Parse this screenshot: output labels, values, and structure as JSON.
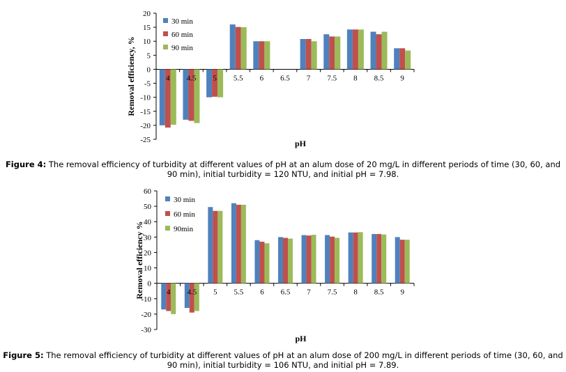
{
  "chart_data": [
    {
      "type": "bar",
      "figure_label": "Figure 4:",
      "caption": "The removal efficiency of turbidity at different values of pH at an alum dose of 20 mg/L in different periods of time (30, 60, and 90 min), initial turbidity = 120 NTU, and initial pH = 7.98.",
      "xlabel": "pH",
      "ylabel": "Removal efficiency, %",
      "ylim": [
        -25,
        20
      ],
      "yticks": [
        20,
        15,
        10,
        5,
        0,
        -5,
        -10,
        -15,
        -20,
        -25
      ],
      "categories": [
        "4",
        "4.5",
        "5",
        "5.5",
        "6",
        "6.5",
        "7",
        "7.5",
        "8",
        "8.5",
        "9"
      ],
      "legend_position": "top-left",
      "series": [
        {
          "name": "30 min",
          "color": "#4F81BD",
          "values": [
            -20,
            -18,
            -10,
            16,
            10,
            0,
            10.8,
            12.5,
            14.2,
            13.4,
            7.5
          ]
        },
        {
          "name": "60 min",
          "color": "#C0504D",
          "values": [
            -20.8,
            -18.4,
            -9.8,
            15.1,
            10,
            0,
            10.8,
            11.7,
            14.2,
            12.5,
            7.5
          ]
        },
        {
          "name": "90 min",
          "color": "#9BBB59",
          "values": [
            -19.8,
            -19.2,
            -10,
            15,
            10,
            0,
            10,
            11.7,
            14.2,
            13.4,
            6.7
          ]
        }
      ]
    },
    {
      "type": "bar",
      "figure_label": "Figure 5:",
      "caption": "The removal efficiency of turbidity at different values of pH at an alum dose of 200 mg/L in different periods of time (30, 60, and 90 min), initial turbidity = 106 NTU, and initial pH = 7.89.",
      "xlabel": "pH",
      "ylabel": "Removal efficiency %",
      "ylim": [
        -30,
        60
      ],
      "yticks": [
        60,
        50,
        40,
        30,
        20,
        10,
        0,
        -10,
        -20,
        -30
      ],
      "categories": [
        "4",
        "4.5",
        "5",
        "5.5",
        "6",
        "6.5",
        "7",
        "7.5",
        "8",
        "8.5",
        "9"
      ],
      "legend_position": "top-left",
      "series": [
        {
          "name": "30 min",
          "color": "#4F81BD",
          "values": [
            -17,
            -16,
            49.5,
            52,
            28,
            30,
            31.3,
            31.3,
            33,
            32,
            30
          ]
        },
        {
          "name": "60 min",
          "color": "#C0504D",
          "values": [
            -18,
            -19,
            47,
            51,
            27,
            29.5,
            31,
            30.3,
            33,
            32,
            28.3
          ]
        },
        {
          "name": "90min",
          "color": "#9BBB59",
          "values": [
            -20,
            -18,
            47,
            51,
            26,
            29,
            31.5,
            29.5,
            33.2,
            31.7,
            28.3
          ]
        }
      ]
    }
  ]
}
